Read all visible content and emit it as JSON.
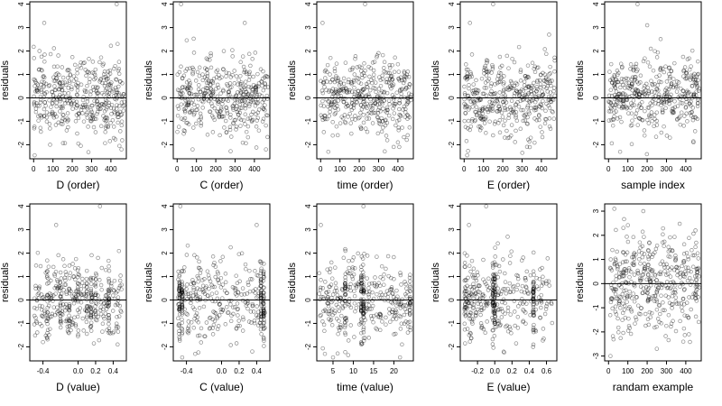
{
  "chart_data": [
    {
      "type": "scatter",
      "xlabel": "D (order)",
      "ylabel": "residuals",
      "xlim": [
        -20,
        480
      ],
      "ylim": [
        -2.6,
        4.1
      ],
      "xticks": [
        0,
        100,
        200,
        300,
        400
      ],
      "xtick_labels": [
        "0",
        "100",
        "200",
        "300",
        "400"
      ],
      "yticks": [
        -2,
        -1,
        0,
        1,
        2,
        3,
        4
      ],
      "ytick_labels": [
        "-2",
        "-1",
        "0",
        "1",
        "2",
        "3",
        "4"
      ],
      "n": 420,
      "x_dist": "uniform",
      "x_range": [
        0,
        470
      ],
      "y_dist": "normal",
      "y_sd": 0.8,
      "highlight_points": [
        [
          30,
          2.0
        ],
        [
          55,
          3.2
        ],
        [
          85,
          -2.0
        ],
        [
          180,
          0.2
        ],
        [
          430,
          4.0
        ],
        [
          455,
          -2.2
        ]
      ],
      "hline": 0
    },
    {
      "type": "scatter",
      "xlabel": "C (order)",
      "ylabel": "residuals",
      "xlim": [
        -20,
        480
      ],
      "ylim": [
        -2.6,
        4.1
      ],
      "xticks": [
        0,
        100,
        200,
        300,
        400
      ],
      "xtick_labels": [
        "0",
        "100",
        "200",
        "300",
        "400"
      ],
      "yticks": [
        -2,
        -1,
        0,
        1,
        2,
        3,
        4
      ],
      "ytick_labels": [
        "-2",
        "-1",
        "0",
        "1",
        "2",
        "3",
        "4"
      ],
      "n": 420,
      "x_dist": "uniform",
      "x_range": [
        0,
        470
      ],
      "y_dist": "normal",
      "y_sd": 0.8,
      "highlight_points": [
        [
          20,
          4.0
        ],
        [
          80,
          -2.2
        ],
        [
          350,
          3.2
        ],
        [
          460,
          -2.2
        ]
      ],
      "hline": 0
    },
    {
      "type": "scatter",
      "xlabel": "time (order)",
      "ylabel": "residuals",
      "xlim": [
        -20,
        480
      ],
      "ylim": [
        -2.6,
        4.1
      ],
      "xticks": [
        0,
        100,
        200,
        300,
        400
      ],
      "xtick_labels": [
        "0",
        "100",
        "200",
        "300",
        "400"
      ],
      "yticks": [
        -2,
        -1,
        0,
        1,
        2,
        3,
        4
      ],
      "ytick_labels": [
        "-2",
        "-1",
        "0",
        "1",
        "2",
        "3",
        "4"
      ],
      "n": 420,
      "x_dist": "uniform",
      "x_range": [
        0,
        470
      ],
      "y_dist": "normal",
      "y_sd": 0.8,
      "highlight_points": [
        [
          10,
          3.2
        ],
        [
          230,
          4.0
        ],
        [
          40,
          -2.3
        ],
        [
          400,
          -1.9
        ]
      ],
      "hline": 0
    },
    {
      "type": "scatter",
      "xlabel": "E (order)",
      "ylabel": "residuals",
      "xlim": [
        -20,
        480
      ],
      "ylim": [
        -2.6,
        4.1
      ],
      "xticks": [
        0,
        100,
        200,
        300,
        400
      ],
      "xtick_labels": [
        "0",
        "100",
        "200",
        "300",
        "400"
      ],
      "yticks": [
        -2,
        -1,
        0,
        1,
        2,
        3,
        4
      ],
      "ytick_labels": [
        "-2",
        "-1",
        "0",
        "1",
        "2",
        "3",
        "4"
      ],
      "n": 420,
      "x_dist": "uniform",
      "x_range": [
        0,
        470
      ],
      "y_dist": "normal",
      "y_sd": 0.8,
      "highlight_points": [
        [
          30,
          3.2
        ],
        [
          150,
          4.0
        ],
        [
          340,
          -2.1
        ],
        [
          440,
          2.7
        ]
      ],
      "hline": 0
    },
    {
      "type": "scatter",
      "xlabel": "sample index",
      "ylabel": "residuals",
      "xlim": [
        -20,
        480
      ],
      "ylim": [
        -2.6,
        4.1
      ],
      "xticks": [
        0,
        100,
        200,
        300,
        400
      ],
      "xtick_labels": [
        "0",
        "100",
        "200",
        "300",
        "400"
      ],
      "yticks": [
        -2,
        -1,
        0,
        1,
        2,
        3,
        4
      ],
      "ytick_labels": [
        "-2",
        "-1",
        "0",
        "1",
        "2",
        "3",
        "4"
      ],
      "n": 420,
      "x_dist": "uniform",
      "x_range": [
        0,
        470
      ],
      "y_dist": "normal",
      "y_sd": 0.8,
      "highlight_points": [
        [
          150,
          4.0
        ],
        [
          200,
          3.1
        ],
        [
          60,
          -2.3
        ],
        [
          440,
          -1.9
        ]
      ],
      "hline": 0
    },
    {
      "type": "scatter",
      "xlabel": "D (value)",
      "ylabel": "residuals",
      "xlim": [
        -0.55,
        0.55
      ],
      "ylim": [
        -2.6,
        4.1
      ],
      "xticks": [
        -0.4,
        0,
        0.2,
        0.4
      ],
      "xtick_labels": [
        "-0.4",
        "0.0",
        "0.2",
        "0.4"
      ],
      "yticks": [
        -2,
        -1,
        0,
        1,
        2,
        3,
        4
      ],
      "ytick_labels": [
        "-2",
        "-1",
        "0",
        "1",
        "2",
        "3",
        "4"
      ],
      "n": 420,
      "x_dist": "banded",
      "x_range": [
        -0.5,
        0.5
      ],
      "x_bands": [
        -0.35,
        -0.2,
        -0.1,
        0.0,
        0.1,
        0.15,
        0.2,
        0.35
      ],
      "y_dist": "normal",
      "y_sd": 0.8,
      "highlight_points": [
        [
          -0.25,
          3.2
        ],
        [
          0.25,
          4.0
        ],
        [
          -0.4,
          -1.8
        ],
        [
          0.45,
          -1.9
        ]
      ],
      "hline": 0
    },
    {
      "type": "scatter",
      "xlabel": "C (value)",
      "ylabel": "residuals",
      "xlim": [
        -0.55,
        0.55
      ],
      "ylim": [
        -2.6,
        4.1
      ],
      "xticks": [
        -0.4,
        0,
        0.2,
        0.4
      ],
      "xtick_labels": [
        "-0.4",
        "0.0",
        "0.2",
        "0.4"
      ],
      "yticks": [
        -2,
        -1,
        0,
        1,
        2,
        3,
        4
      ],
      "ytick_labels": [
        "-2",
        "-1",
        "0",
        "1",
        "2",
        "3",
        "4"
      ],
      "n": 420,
      "x_dist": "banded",
      "x_range": [
        -0.5,
        0.5
      ],
      "x_bands": [
        -0.48,
        -0.45,
        0.45,
        0.48
      ],
      "y_dist": "normal",
      "y_sd": 0.8,
      "highlight_points": [
        [
          -0.47,
          4.0
        ],
        [
          0.4,
          3.2
        ],
        [
          -0.3,
          -2.3
        ],
        [
          0.35,
          -2.2
        ]
      ],
      "hline": 0
    },
    {
      "type": "scatter",
      "xlabel": "time (value)",
      "ylabel": "residuals",
      "xlim": [
        1,
        24.8
      ],
      "ylim": [
        -2.6,
        4.1
      ],
      "xticks": [
        5,
        10,
        15,
        20
      ],
      "xtick_labels": [
        "5",
        "10",
        "15",
        "20"
      ],
      "yticks": [
        -2,
        -1,
        0,
        1,
        2,
        3,
        4
      ],
      "ytick_labels": [
        "-2",
        "-1",
        "0",
        "1",
        "2",
        "3",
        "4"
      ],
      "n": 420,
      "x_dist": "banded",
      "x_range": [
        1.5,
        24
      ],
      "x_bands": [
        8,
        12,
        12.5,
        24
      ],
      "y_dist": "normal",
      "y_sd": 0.8,
      "highlight_points": [
        [
          2,
          3.2
        ],
        [
          12.5,
          4.0
        ],
        [
          3,
          -2.3
        ],
        [
          22,
          -1.9
        ]
      ],
      "hline": 0
    },
    {
      "type": "scatter",
      "xlabel": "E (value)",
      "ylabel": "residuals",
      "xlim": [
        -0.4,
        0.72
      ],
      "ylim": [
        -2.6,
        4.1
      ],
      "xticks": [
        -0.2,
        0,
        0.2,
        0.4,
        0.6
      ],
      "xtick_labels": [
        "-0.2",
        "0.0",
        "0.2",
        "0.4",
        "0.6"
      ],
      "yticks": [
        -2,
        -1,
        0,
        1,
        2,
        3,
        4
      ],
      "ytick_labels": [
        "-2",
        "-1",
        "0",
        "1",
        "2",
        "3",
        "4"
      ],
      "n": 420,
      "x_dist": "skewed",
      "x_range": [
        -0.35,
        0.68
      ],
      "x_bands": [
        -0.02,
        0.0,
        0.45
      ],
      "y_dist": "normal",
      "y_sd": 0.8,
      "highlight_points": [
        [
          -0.3,
          3.2
        ],
        [
          -0.1,
          4.0
        ],
        [
          0.15,
          2.7
        ],
        [
          0.6,
          0.8
        ]
      ],
      "hline": 0
    },
    {
      "type": "scatter",
      "xlabel": "randam example",
      "ylabel": "residuals",
      "xlim": [
        -20,
        480
      ],
      "ylim": [
        -3.2,
        3.3
      ],
      "xticks": [
        0,
        100,
        200,
        300,
        400
      ],
      "xtick_labels": [
        "0",
        "100",
        "200",
        "300",
        "400"
      ],
      "yticks": [
        -3,
        -2,
        -1,
        0,
        1,
        2,
        3
      ],
      "ytick_labels": [
        "-3",
        "-2",
        "-1",
        "0",
        "1",
        "2",
        "3"
      ],
      "n": 420,
      "x_dist": "uniform",
      "x_range": [
        0,
        470
      ],
      "y_dist": "normal",
      "y_sd": 1.0,
      "highlight_points": [
        [
          30,
          3.1
        ],
        [
          180,
          3.0
        ],
        [
          10,
          -3.0
        ],
        [
          250,
          -2.7
        ],
        [
          450,
          2.2
        ]
      ],
      "hline": 0
    }
  ]
}
